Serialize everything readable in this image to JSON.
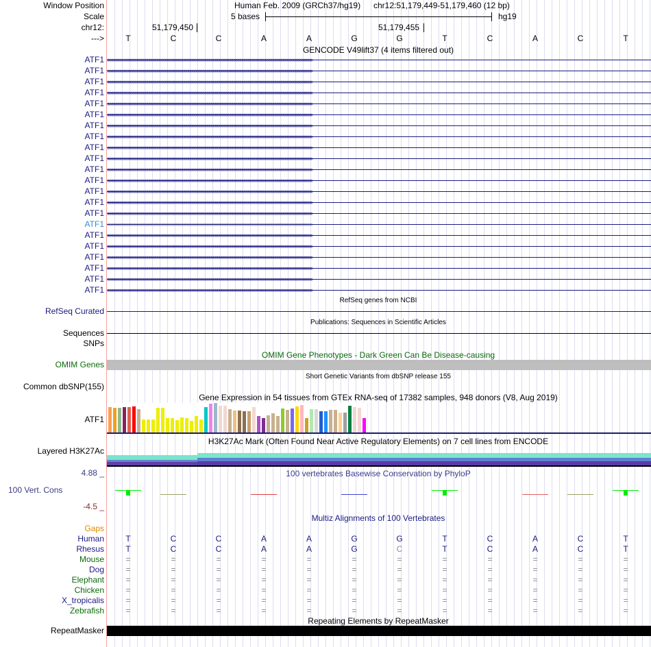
{
  "labels": {
    "window_position": "Window Position",
    "scale": "Scale",
    "chr": "chr12:",
    "strand": "--->"
  },
  "header": {
    "assembly": "Human Feb. 2009 (GRCh37/hg19)",
    "position": "chr12:51,179,449-51,179,460 (12 bp)",
    "scale_text": "5 bases",
    "db": "hg19",
    "tick1": "51,179,450",
    "tick2": "51,179,455"
  },
  "bases": [
    "T",
    "C",
    "C",
    "A",
    "A",
    "G",
    "G",
    "T",
    "C",
    "A",
    "C",
    "T"
  ],
  "gencode": {
    "title": "GENCODE V49lift37 (4 items filtered out)",
    "gene": "ATF1",
    "rows": 22,
    "highlighted_row": 15
  },
  "refseq": {
    "title": "RefSeq genes from NCBI",
    "label": "RefSeq Curated"
  },
  "pubs": {
    "title": "Publications: Sequences in Scientific Articles",
    "label1": "Sequences",
    "label2": "SNPs"
  },
  "omim": {
    "title": "OMIM Gene Phenotypes - Dark Green Can Be Disease-causing",
    "label": "OMIM Genes"
  },
  "dbsnp": {
    "title": "Short Genetic Variants from dbSNP release 155",
    "label": "Common dbSNP(155)"
  },
  "gtex": {
    "title": "Gene Expression in 54 tissues from GTEx RNA-seq of 17382 samples, 948 donors (V8, Aug 2019)",
    "label": "ATF1",
    "relative_values": [
      0.86,
      0.84,
      0.84,
      0.86,
      0.86,
      0.88,
      0.8,
      0.45,
      0.45,
      0.45,
      0.84,
      0.84,
      0.5,
      0.5,
      0.43,
      0.52,
      0.48,
      0.39,
      0.55,
      0.45,
      0.86,
      0.97,
      1.0,
      0.9,
      0.9,
      0.8,
      0.75,
      0.75,
      0.73,
      0.73,
      0.86,
      0.57,
      0.5,
      0.59,
      0.66,
      0.57,
      0.82,
      0.77,
      0.82,
      0.88,
      0.93,
      0.48,
      0.8,
      0.8,
      0.73,
      0.73,
      0.77,
      0.77,
      0.68,
      0.68,
      0.9,
      0.86,
      0.84,
      0.48
    ],
    "colors": [
      "#f8a050",
      "#f0a020",
      "#90b890",
      "#8b2060",
      "#e06050",
      "#ff0000",
      "#c8b090",
      "#eeee00",
      "#eeee00",
      "#eeee00",
      "#eeee00",
      "#eeee00",
      "#eeee00",
      "#eeee00",
      "#eeee00",
      "#eeee00",
      "#eeee00",
      "#eeee00",
      "#eeee00",
      "#eeee00",
      "#00c8c8",
      "#ee82ee",
      "#9ab8c8",
      "#f0d8d0",
      "#f0d8d0",
      "#c8b090",
      "#f0c080",
      "#8b7050",
      "#8b7050",
      "#c8a070",
      "#f0d8d0",
      "#b050c8",
      "#7b3090",
      "#c8b090",
      "#c8b090",
      "#c8b090",
      "#90c830",
      "#c8b090",
      "#7b68ee",
      "#ffd700",
      "#ffb6c1",
      "#d0a020",
      "#b0e8b0",
      "#d8d8d8",
      "#2060d0",
      "#1e90ff",
      "#c8b090",
      "#c8b090",
      "#ffd090",
      "#a0a0a0",
      "#008040",
      "#f0d8d0",
      "#f0d8d0",
      "#ff00ff"
    ]
  },
  "h3k27ac": {
    "title": "H3K27Ac Mark (Often Found Near Active Regulatory Elements) on 7 cell lines from ENCODE",
    "label": "Layered H3K27Ac"
  },
  "phylop": {
    "title": "100 vertebrates Basewise Conservation by PhyloP",
    "label": "100 Vert. Cons",
    "max": "4.88 _",
    "min": "-4.5 _",
    "marks": [
      {
        "base": 0,
        "color": "#00ee00",
        "bar": true
      },
      {
        "base": 1,
        "color": "#a0a060",
        "bar": false
      },
      {
        "base": 3,
        "color": "#e04040",
        "bar": false
      },
      {
        "base": 5,
        "color": "#4040d0",
        "bar": false
      },
      {
        "base": 7,
        "color": "#00ee00",
        "bar": true
      },
      {
        "base": 9,
        "color": "#e06060",
        "bar": false
      },
      {
        "base": 10,
        "color": "#a0a060",
        "bar": false
      },
      {
        "base": 11,
        "color": "#00ee00",
        "bar": true
      }
    ]
  },
  "multiz": {
    "title": "Multiz Alignments of 100 Vertebrates",
    "gaps": "Gaps",
    "species": [
      {
        "name": "Human",
        "color": "#1a1a80",
        "seq": [
          "T",
          "C",
          "C",
          "A",
          "A",
          "G",
          "G",
          "T",
          "C",
          "A",
          "C",
          "T"
        ]
      },
      {
        "name": "Rhesus",
        "color": "#1a1a80",
        "seq": [
          "T",
          "C",
          "C",
          "A",
          "A",
          "G",
          "C",
          "T",
          "C",
          "A",
          "C",
          "T"
        ]
      },
      {
        "name": "Mouse",
        "color": "#0a6a0a",
        "seq": [
          "=",
          "=",
          "=",
          "=",
          "=",
          "=",
          "=",
          "=",
          "=",
          "=",
          "=",
          "="
        ]
      },
      {
        "name": "Dog",
        "color": "#1a1a80",
        "seq": [
          "=",
          "=",
          "=",
          "=",
          "=",
          "=",
          "=",
          "=",
          "=",
          "=",
          "=",
          "="
        ]
      },
      {
        "name": "Elephant",
        "color": "#0a6a0a",
        "seq": [
          "=",
          "=",
          "=",
          "=",
          "=",
          "=",
          "=",
          "=",
          "=",
          "=",
          "=",
          "="
        ]
      },
      {
        "name": "Chicken",
        "color": "#0a6a0a",
        "seq": [
          "=",
          "=",
          "=",
          "=",
          "=",
          "=",
          "=",
          "=",
          "=",
          "=",
          "=",
          "="
        ]
      },
      {
        "name": "X_tropicalis",
        "color": "#1a1a80",
        "seq": [
          "=",
          "=",
          "=",
          "=",
          "=",
          "=",
          "=",
          "=",
          "=",
          "=",
          "=",
          "="
        ]
      },
      {
        "name": "Zebrafish",
        "color": "#0a6a0a",
        "seq": [
          "=",
          "=",
          "=",
          "=",
          "=",
          "=",
          "=",
          "=",
          "=",
          "=",
          "=",
          "="
        ]
      }
    ]
  },
  "repeatmasker": {
    "title": "Repeating Elements by RepeatMasker",
    "label": "RepeatMasker"
  }
}
